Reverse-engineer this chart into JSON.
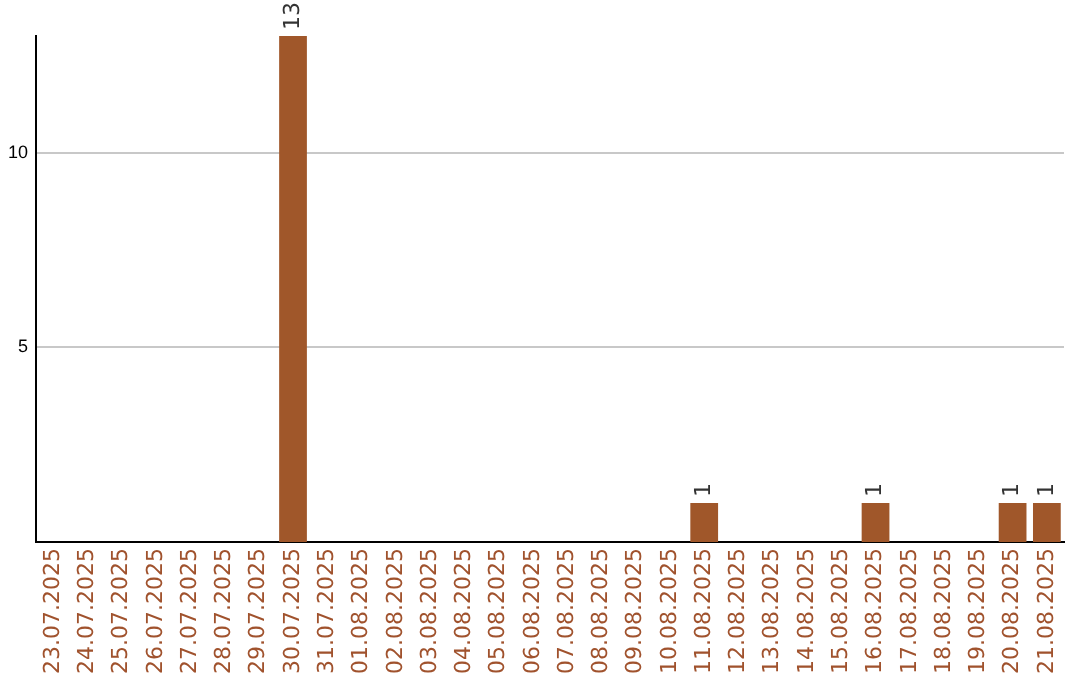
{
  "chart_data": {
    "type": "bar",
    "categories": [
      "23.07.2025",
      "24.07.2025",
      "25.07.2025",
      "26.07.2025",
      "27.07.2025",
      "28.07.2025",
      "29.07.2025",
      "30.07.2025",
      "31.07.2025",
      "01.08.2025",
      "02.08.2025",
      "03.08.2025",
      "04.08.2025",
      "05.08.2025",
      "06.08.2025",
      "07.08.2025",
      "08.08.2025",
      "09.08.2025",
      "10.08.2025",
      "11.08.2025",
      "12.08.2025",
      "13.08.2025",
      "14.08.2025",
      "15.08.2025",
      "16.08.2025",
      "17.08.2025",
      "18.08.2025",
      "19.08.2025",
      "20.08.2025",
      "21.08.2025"
    ],
    "values": [
      0,
      0,
      0,
      0,
      0,
      0,
      0,
      13,
      0,
      0,
      0,
      0,
      0,
      0,
      0,
      0,
      0,
      0,
      0,
      1,
      0,
      0,
      0,
      0,
      1,
      0,
      0,
      0,
      1,
      1
    ],
    "value_labels": [
      null,
      null,
      null,
      null,
      null,
      null,
      null,
      "13",
      null,
      null,
      null,
      null,
      null,
      null,
      null,
      null,
      null,
      null,
      null,
      "1",
      null,
      null,
      null,
      null,
      "1",
      null,
      null,
      null,
      "1",
      "1"
    ],
    "color": "#a0572a",
    "ylim": [
      0,
      13
    ],
    "yticks": [
      5,
      10
    ],
    "grid": "y"
  }
}
